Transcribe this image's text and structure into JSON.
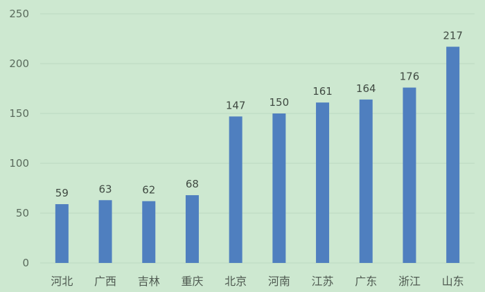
{
  "chart_data": {
    "type": "bar",
    "title": "",
    "xlabel": "",
    "ylabel": "",
    "categories": [
      "河北",
      "广西",
      "吉林",
      "重庆",
      "北京",
      "河南",
      "江苏",
      "广东",
      "浙江",
      "山东"
    ],
    "values": [
      59,
      63,
      62,
      68,
      147,
      150,
      161,
      164,
      176,
      217
    ],
    "ylim": [
      0,
      250
    ],
    "yticks": [
      0,
      50,
      100,
      150,
      200,
      250
    ],
    "grid": true,
    "legend": "none",
    "data_labels": true,
    "colors": {
      "bar": "#4f7fbf",
      "background": "#cde8d0",
      "grid": "#bcd9c0"
    }
  }
}
